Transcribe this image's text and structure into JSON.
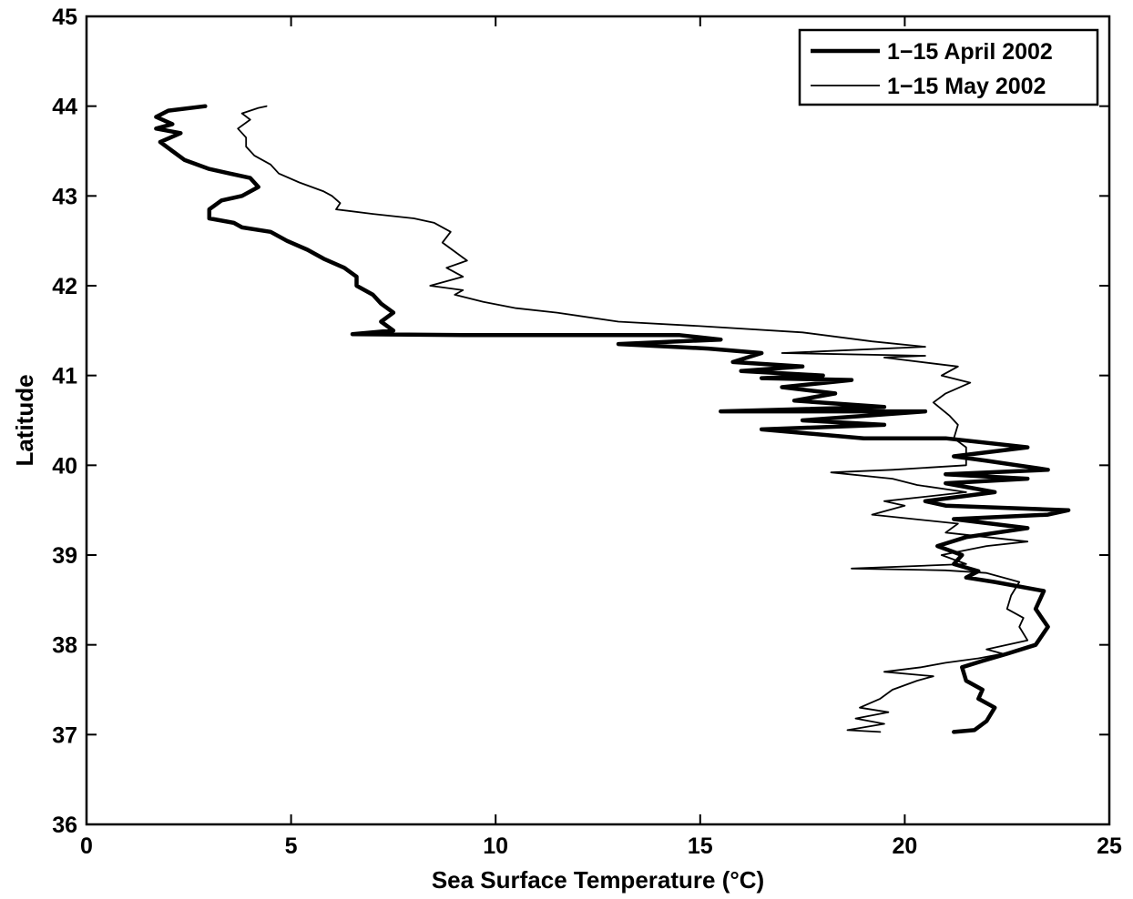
{
  "chart_data": {
    "type": "line",
    "title": "",
    "xlabel": "Sea Surface Temperature (°C)",
    "ylabel": "Latitude",
    "xlim": [
      0,
      25
    ],
    "ylim": [
      36,
      45
    ],
    "x_ticks": [
      "0",
      "5",
      "10",
      "15",
      "20",
      "25"
    ],
    "y_ticks": [
      "36",
      "37",
      "38",
      "39",
      "40",
      "41",
      "42",
      "43",
      "44",
      "45"
    ],
    "grid": false,
    "legend_position": "top-right",
    "series": [
      {
        "name": "1−15 April 2002",
        "color": "#000000",
        "line_weight": "thick",
        "points": [
          [
            21.2,
            37.03
          ],
          [
            21.7,
            37.05
          ],
          [
            22.0,
            37.15
          ],
          [
            22.2,
            37.3
          ],
          [
            21.8,
            37.4
          ],
          [
            21.9,
            37.5
          ],
          [
            21.5,
            37.6
          ],
          [
            21.4,
            37.75
          ],
          [
            21.9,
            37.82
          ],
          [
            22.5,
            37.9
          ],
          [
            23.2,
            38.0
          ],
          [
            23.5,
            38.2
          ],
          [
            23.2,
            38.4
          ],
          [
            23.4,
            38.6
          ],
          [
            22.2,
            38.7
          ],
          [
            21.5,
            38.75
          ],
          [
            21.8,
            38.82
          ],
          [
            21.2,
            38.9
          ],
          [
            21.4,
            39.0
          ],
          [
            20.8,
            39.1
          ],
          [
            21.5,
            39.2
          ],
          [
            23.0,
            39.3
          ],
          [
            21.2,
            39.4
          ],
          [
            23.5,
            39.45
          ],
          [
            24.0,
            39.5
          ],
          [
            21.0,
            39.55
          ],
          [
            20.5,
            39.6
          ],
          [
            22.2,
            39.7
          ],
          [
            21.0,
            39.8
          ],
          [
            23.0,
            39.85
          ],
          [
            21.0,
            39.9
          ],
          [
            23.5,
            39.95
          ],
          [
            22.0,
            40.05
          ],
          [
            21.2,
            40.1
          ],
          [
            23.0,
            40.2
          ],
          [
            21.0,
            40.3
          ],
          [
            19.0,
            40.3
          ],
          [
            16.5,
            40.4
          ],
          [
            19.5,
            40.45
          ],
          [
            17.5,
            40.5
          ],
          [
            20.5,
            40.6
          ],
          [
            15.5,
            40.6
          ],
          [
            19.5,
            40.65
          ],
          [
            17.3,
            40.72
          ],
          [
            18.3,
            40.8
          ],
          [
            17.0,
            40.87
          ],
          [
            18.7,
            40.95
          ],
          [
            16.5,
            40.97
          ],
          [
            18.0,
            41.0
          ],
          [
            16.0,
            41.05
          ],
          [
            17.5,
            41.1
          ],
          [
            15.8,
            41.15
          ],
          [
            16.5,
            41.25
          ],
          [
            15.2,
            41.3
          ],
          [
            13.0,
            41.35
          ],
          [
            15.5,
            41.4
          ],
          [
            14.5,
            41.45
          ],
          [
            9.5,
            41.45
          ],
          [
            6.5,
            41.46
          ],
          [
            7.5,
            41.5
          ],
          [
            7.2,
            41.6
          ],
          [
            7.5,
            41.7
          ],
          [
            7.2,
            41.8
          ],
          [
            7.0,
            41.9
          ],
          [
            6.6,
            42.0
          ],
          [
            6.6,
            42.1
          ],
          [
            6.3,
            42.2
          ],
          [
            5.8,
            42.3
          ],
          [
            5.4,
            42.4
          ],
          [
            4.9,
            42.5
          ],
          [
            4.5,
            42.6
          ],
          [
            3.8,
            42.65
          ],
          [
            3.6,
            42.7
          ],
          [
            3.0,
            42.75
          ],
          [
            3.0,
            42.85
          ],
          [
            3.3,
            42.95
          ],
          [
            3.8,
            43.0
          ],
          [
            4.2,
            43.1
          ],
          [
            4.0,
            43.2
          ],
          [
            3.5,
            43.25
          ],
          [
            3.0,
            43.3
          ],
          [
            2.4,
            43.4
          ],
          [
            2.1,
            43.5
          ],
          [
            1.8,
            43.6
          ],
          [
            2.3,
            43.7
          ],
          [
            1.7,
            43.75
          ],
          [
            2.1,
            43.8
          ],
          [
            1.7,
            43.88
          ],
          [
            2.0,
            43.95
          ],
          [
            2.9,
            44.0
          ]
        ]
      },
      {
        "name": "1−15 May 2002",
        "color": "#000000",
        "line_weight": "thin",
        "points": [
          [
            19.4,
            37.03
          ],
          [
            18.6,
            37.05
          ],
          [
            19.5,
            37.12
          ],
          [
            18.8,
            37.18
          ],
          [
            19.6,
            37.25
          ],
          [
            18.9,
            37.3
          ],
          [
            19.4,
            37.4
          ],
          [
            19.7,
            37.5
          ],
          [
            20.3,
            37.6
          ],
          [
            20.7,
            37.65
          ],
          [
            19.5,
            37.7
          ],
          [
            20.4,
            37.75
          ],
          [
            21.0,
            37.8
          ],
          [
            21.8,
            37.85
          ],
          [
            22.4,
            37.9
          ],
          [
            22.0,
            37.95
          ],
          [
            23.0,
            38.05
          ],
          [
            22.8,
            38.2
          ],
          [
            22.9,
            38.3
          ],
          [
            22.5,
            38.4
          ],
          [
            22.6,
            38.55
          ],
          [
            22.8,
            38.7
          ],
          [
            22.0,
            38.8
          ],
          [
            21.0,
            38.83
          ],
          [
            18.7,
            38.85
          ],
          [
            21.5,
            38.9
          ],
          [
            20.9,
            39.0
          ],
          [
            22.0,
            39.1
          ],
          [
            23.0,
            39.15
          ],
          [
            21.0,
            39.25
          ],
          [
            21.3,
            39.35
          ],
          [
            19.2,
            39.45
          ],
          [
            20.0,
            39.55
          ],
          [
            19.5,
            39.6
          ],
          [
            20.5,
            39.65
          ],
          [
            21.5,
            39.7
          ],
          [
            20.3,
            39.78
          ],
          [
            19.7,
            39.85
          ],
          [
            18.2,
            39.92
          ],
          [
            19.7,
            39.95
          ],
          [
            21.5,
            40.0
          ],
          [
            21.5,
            40.2
          ],
          [
            21.2,
            40.3
          ],
          [
            21.3,
            40.45
          ],
          [
            21.1,
            40.55
          ],
          [
            20.7,
            40.7
          ],
          [
            21.0,
            40.8
          ],
          [
            21.6,
            40.92
          ],
          [
            20.9,
            41.0
          ],
          [
            21.3,
            41.1
          ],
          [
            19.5,
            41.2
          ],
          [
            20.5,
            41.22
          ],
          [
            17.0,
            41.25
          ],
          [
            20.5,
            41.32
          ],
          [
            19.2,
            41.38
          ],
          [
            17.5,
            41.48
          ],
          [
            15.0,
            41.55
          ],
          [
            13.0,
            41.6
          ],
          [
            11.5,
            41.7
          ],
          [
            10.5,
            41.75
          ],
          [
            9.7,
            41.82
          ],
          [
            9.0,
            41.9
          ],
          [
            9.2,
            41.95
          ],
          [
            8.4,
            42.0
          ],
          [
            9.2,
            42.1
          ],
          [
            8.8,
            42.2
          ],
          [
            9.3,
            42.28
          ],
          [
            9.0,
            42.38
          ],
          [
            8.7,
            42.48
          ],
          [
            8.9,
            42.6
          ],
          [
            8.5,
            42.7
          ],
          [
            8.0,
            42.75
          ],
          [
            7.0,
            42.8
          ],
          [
            6.1,
            42.85
          ],
          [
            6.2,
            42.92
          ],
          [
            6.0,
            43.0
          ],
          [
            5.8,
            43.05
          ],
          [
            5.2,
            43.15
          ],
          [
            4.7,
            43.25
          ],
          [
            4.5,
            43.35
          ],
          [
            4.1,
            43.45
          ],
          [
            3.9,
            43.55
          ],
          [
            3.9,
            43.65
          ],
          [
            3.7,
            43.75
          ],
          [
            4.0,
            43.85
          ],
          [
            3.8,
            43.92
          ],
          [
            4.2,
            43.98
          ],
          [
            4.4,
            44.0
          ]
        ]
      }
    ]
  }
}
